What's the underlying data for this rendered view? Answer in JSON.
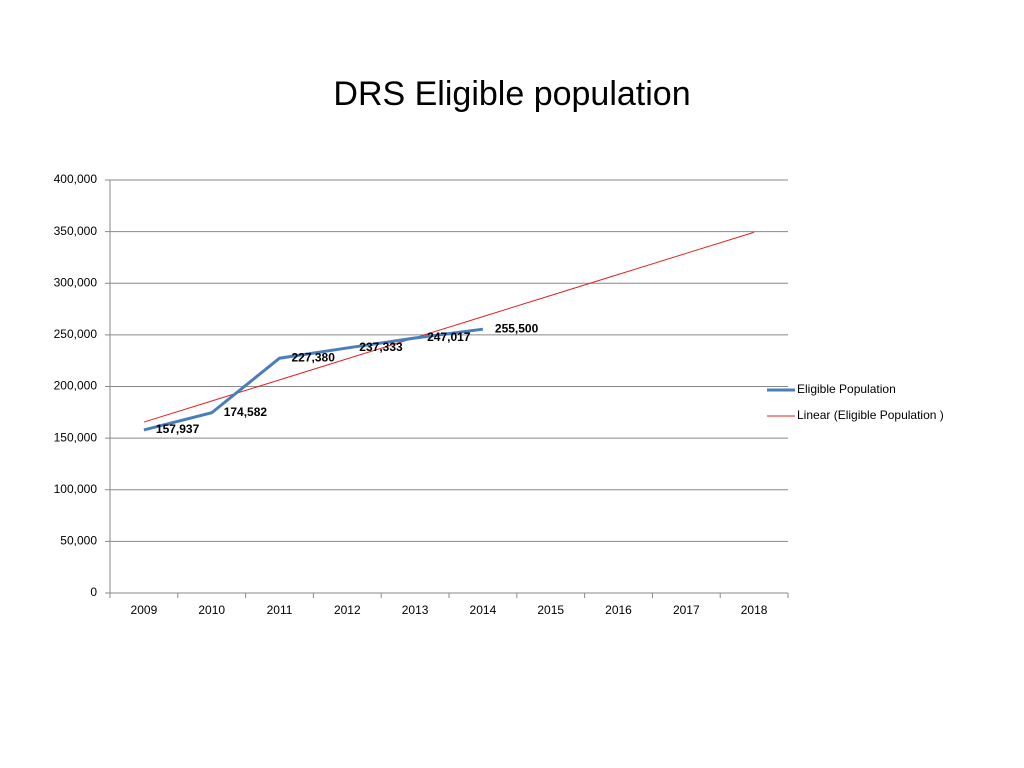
{
  "chart_data": {
    "type": "line",
    "title": "DRS Eligible population",
    "categories": [
      "2009",
      "2010",
      "2011",
      "2012",
      "2013",
      "2014",
      "2015",
      "2016",
      "2017",
      "2018"
    ],
    "series": [
      {
        "name": "Eligible Population",
        "color": "#4a7ebb",
        "values": [
          157937,
          174582,
          227380,
          237333,
          247017,
          255500,
          null,
          null,
          null,
          null
        ],
        "value_labels": [
          "157,937",
          "174,582",
          "227,380",
          "237,333",
          "247,017",
          "255,500",
          null,
          null,
          null,
          null
        ]
      },
      {
        "name": "Linear (Eligible Population )",
        "color": "#e02020",
        "values": [
          165548,
          185979,
          206410,
          226840,
          247271,
          267702,
          288133,
          308563,
          328994,
          349425
        ]
      }
    ],
    "ylim": [
      0,
      400000
    ],
    "yticks": [
      0,
      {
        "value": 50000,
        "label": "50,000"
      },
      {
        "value": 100000,
        "label": "100,000"
      },
      {
        "value": 150000,
        "label": "150,000"
      },
      {
        "value": 200000,
        "label": "200,000"
      },
      {
        "value": 250000,
        "label": "250,000"
      },
      {
        "value": 300000,
        "label": "300,000"
      },
      {
        "value": 350000,
        "label": "350,000"
      },
      {
        "value": 400000,
        "label": "400,000"
      }
    ],
    "grid": true,
    "legend": "right"
  }
}
